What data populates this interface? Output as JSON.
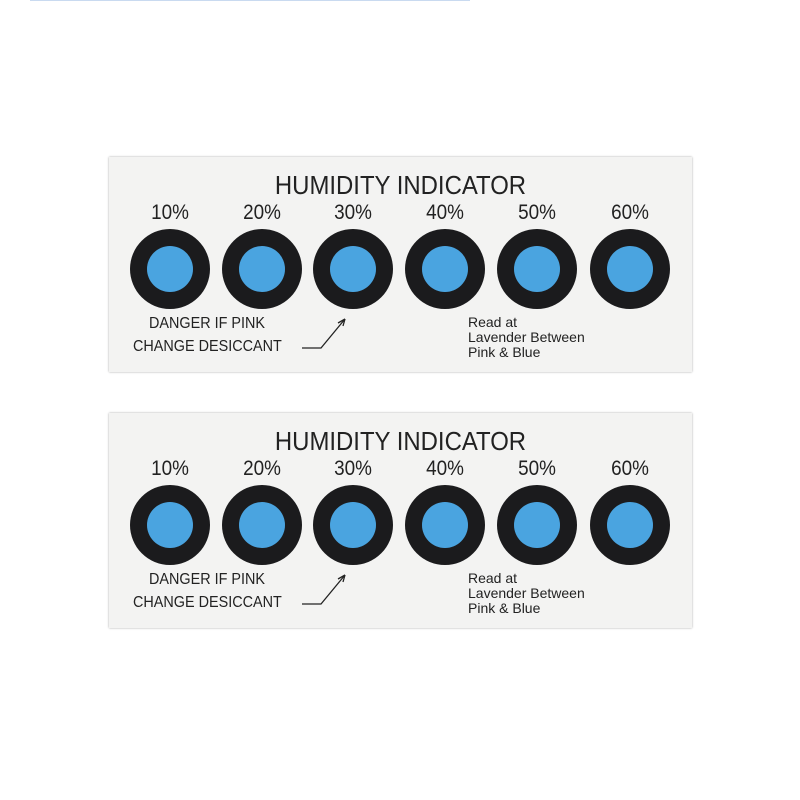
{
  "cards": [
    {
      "title": "HUMIDITY INDICATOR",
      "levels": [
        "10%",
        "20%",
        "30%",
        "40%",
        "50%",
        "60%"
      ],
      "warning_line1": "DANGER IF PINK",
      "warning_line2": "CHANGE DESICCANT",
      "read_line1": "Read at",
      "read_line2": "Lavender Between",
      "read_line3": "Pink & Blue"
    },
    {
      "title": "HUMIDITY INDICATOR",
      "levels": [
        "10%",
        "20%",
        "30%",
        "40%",
        "50%",
        "60%"
      ],
      "warning_line1": "DANGER IF PINK",
      "warning_line2": "CHANGE DESICCANT",
      "read_line1": "Read at",
      "read_line2": "Lavender Between",
      "read_line3": "Pink & Blue"
    }
  ],
  "colors": {
    "spot": "#4aa4e0",
    "ring": "#1b1b1d",
    "card": "#f3f3f2"
  }
}
